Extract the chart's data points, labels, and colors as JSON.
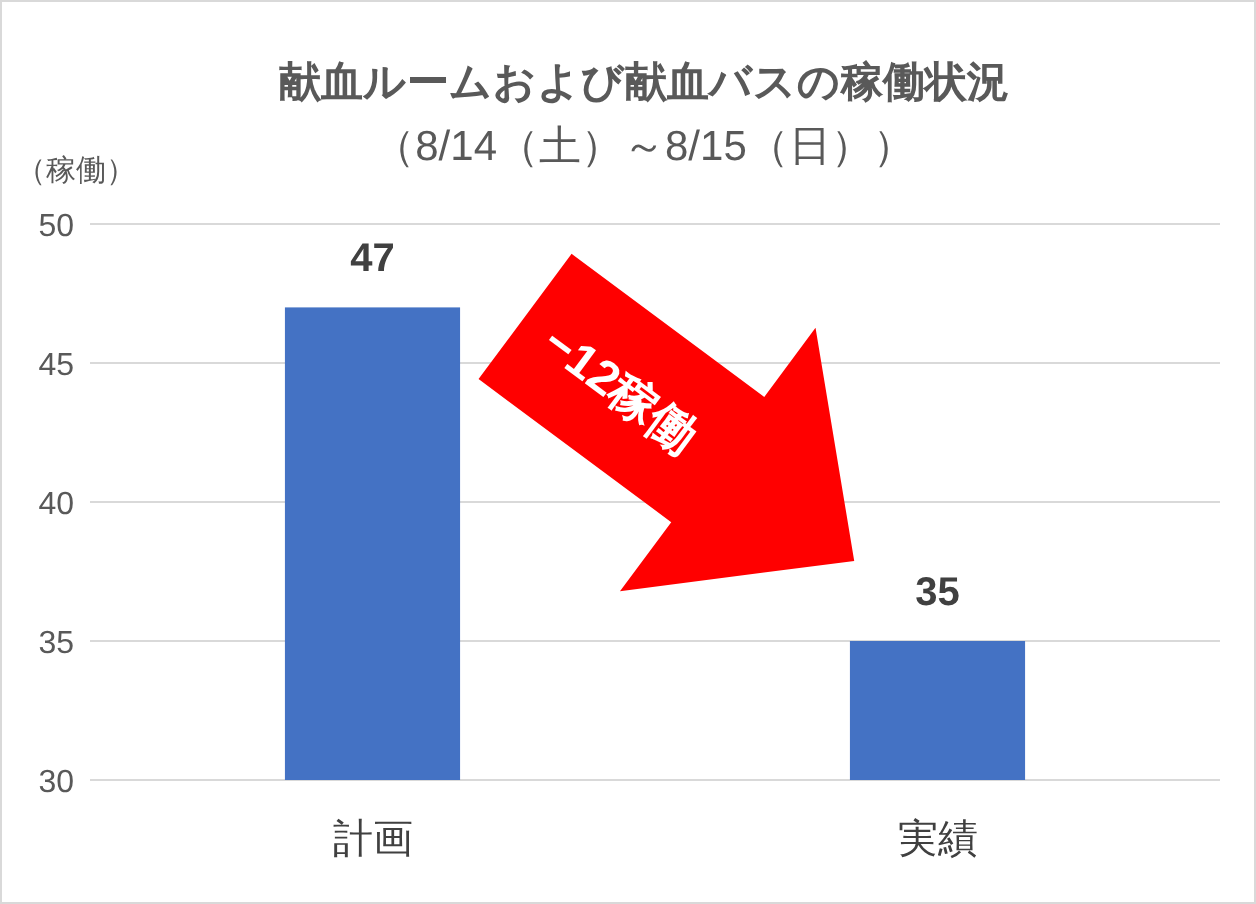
{
  "chart_data": {
    "type": "bar",
    "title": "献血ルームおよび献血バスの稼働状況",
    "subtitle": "（8/14（土）～8/15（日））",
    "ylabel": "（稼働）",
    "categories": [
      "計画",
      "実績"
    ],
    "values": [
      47,
      35
    ],
    "color": "#4472c4",
    "ylim": [
      30,
      50
    ],
    "yticks": [
      30,
      35,
      40,
      45,
      50
    ],
    "grid": "y",
    "data_labels": true,
    "annotations": [
      "−12稼働"
    ]
  }
}
